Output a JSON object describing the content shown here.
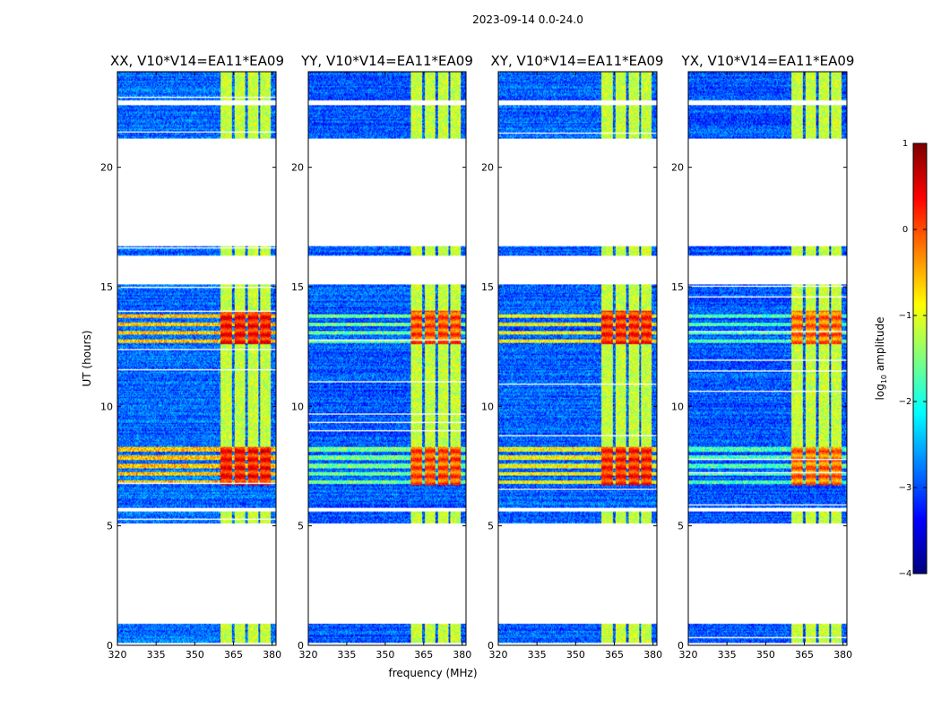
{
  "chart_data": {
    "type": "heatmap",
    "suptitle": "2023-09-14 0.0-24.0",
    "xlabel": "frequency (MHz)",
    "ylabel": "UT (hours)",
    "xlim": [
      320,
      381.5
    ],
    "ylim": [
      0,
      24
    ],
    "xticks": [
      320,
      335,
      350,
      365,
      380
    ],
    "yticks": [
      0,
      5,
      10,
      15,
      20
    ],
    "colormap": "jet",
    "colorbar": {
      "label_main": "log",
      "label_sub": "10",
      "label_rest": " amplitude",
      "range": [
        -4,
        1
      ],
      "ticks": [
        1,
        0,
        -1,
        -2,
        -3,
        -4
      ]
    },
    "panels": [
      {
        "title": "XX, V10*V14=EA11*EA09",
        "pol": "XX",
        "base_level": -2.85,
        "rfi_peak": 0.55,
        "low_band_rfi_level": 0.0
      },
      {
        "title": "YY, V10*V14=EA11*EA09",
        "pol": "YY",
        "base_level": -2.95,
        "rfi_peak": 0.25,
        "low_band_rfi_level": -1.0
      },
      {
        "title": "XY, V10*V14=EA11*EA09",
        "pol": "XY",
        "base_level": -2.9,
        "rfi_peak": 0.45,
        "low_band_rfi_level": -0.3
      },
      {
        "title": "YX, V10*V14=EA11*EA09",
        "pol": "YX",
        "base_level": -2.95,
        "rfi_peak": 0.1,
        "low_band_rfi_level": -1.2
      }
    ],
    "data_gaps_hours": [
      [
        0.0,
        0.1
      ],
      [
        0.9,
        5.1
      ],
      [
        5.6,
        5.75
      ],
      [
        15.1,
        16.3
      ],
      [
        16.7,
        21.2
      ],
      [
        22.6,
        22.8
      ]
    ],
    "rfi_channels_mhz": [
      [
        360,
        364.5
      ],
      [
        365.5,
        369.5
      ],
      [
        370.5,
        374.5
      ],
      [
        375.5,
        379.5
      ]
    ],
    "rfi_bright_hours": [
      [
        6.7,
        8.3
      ],
      [
        12.6,
        14.0
      ]
    ],
    "rfi_moderate_hours": [
      [
        0.1,
        0.9
      ],
      [
        5.1,
        5.6
      ],
      [
        8.3,
        15.1
      ],
      [
        16.3,
        16.7
      ],
      [
        21.2,
        22.6
      ],
      [
        22.8,
        24.0
      ]
    ]
  }
}
